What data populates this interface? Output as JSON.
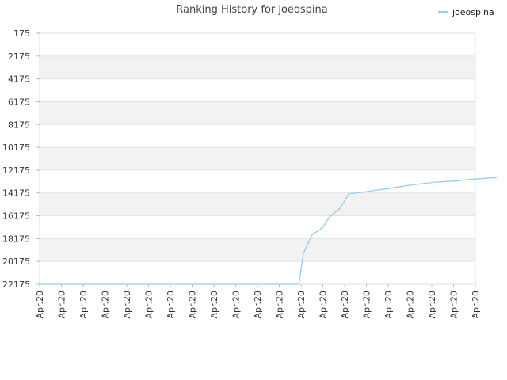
{
  "chart_data": {
    "type": "line",
    "title": "Ranking History for joeospina",
    "xlabel": "",
    "ylabel": "",
    "y_inverted": true,
    "ylim": [
      175,
      22175
    ],
    "y_ticks": [
      "175",
      "2175",
      "4175",
      "6175",
      "8175",
      "10175",
      "12175",
      "14175",
      "16175",
      "18175",
      "20175",
      "22175"
    ],
    "x_ticks": [
      "Apr.20",
      "Apr.20",
      "Apr.20",
      "Apr.20",
      "Apr.20",
      "Apr.20",
      "Apr.20",
      "Apr.20",
      "Apr.20",
      "Apr.20",
      "Apr.20",
      "Apr.20",
      "Apr.20",
      "Apr.20",
      "Apr.20",
      "Apr.20",
      "Apr.20",
      "Apr.20",
      "Apr.20",
      "Apr.20",
      "Apr.20"
    ],
    "grid": true,
    "legend_position": "top-right",
    "series": [
      {
        "name": "joeospina",
        "color": "#99ccee",
        "points": [
          [
            0,
            22175
          ],
          [
            11.9,
            22175
          ],
          [
            12.1,
            19500
          ],
          [
            12.5,
            17850
          ],
          [
            13.0,
            17200
          ],
          [
            13.3,
            16300
          ],
          [
            13.8,
            15500
          ],
          [
            14.2,
            14240
          ],
          [
            15,
            14060
          ],
          [
            16,
            13790
          ],
          [
            17,
            13500
          ],
          [
            18,
            13260
          ],
          [
            19,
            13130
          ],
          [
            20,
            12960
          ],
          [
            21,
            12820
          ]
        ]
      }
    ]
  }
}
